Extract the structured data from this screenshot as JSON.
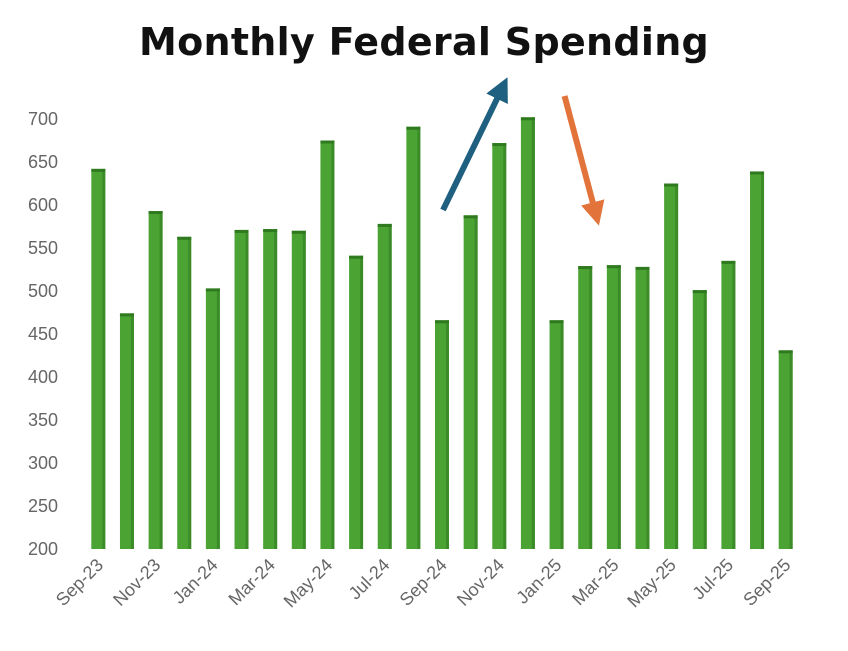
{
  "colors": {
    "bar": "#4aa333",
    "bar_top": "#2f7a1f",
    "arrow_up": "#1f5f7f",
    "arrow_down": "#e2733a",
    "axis_text": "#666666"
  },
  "chart_data": {
    "type": "bar",
    "title": "Monthly Federal Spending",
    "xlabel": "",
    "ylabel": "",
    "ylim": [
      200,
      700
    ],
    "yticks": [
      200,
      250,
      300,
      350,
      400,
      450,
      500,
      550,
      600,
      650,
      700
    ],
    "categories": [
      "Sep-23",
      "Oct-23",
      "Nov-23",
      "Dec-23",
      "Jan-24",
      "Feb-24",
      "Mar-24",
      "Apr-24",
      "May-24",
      "Jun-24",
      "Jul-24",
      "Aug-24",
      "Sep-24",
      "Oct-24",
      "Nov-24",
      "Dec-24",
      "Jan-25",
      "Feb-25",
      "Mar-25",
      "Apr-25",
      "May-25",
      "Jun-25",
      "Jul-25",
      "Aug-25",
      "Sep-25"
    ],
    "x_tick_labels": [
      "Sep-23",
      "Nov-23",
      "Jan-24",
      "Mar-24",
      "May-24",
      "Jul-24",
      "Sep-24",
      "Nov-24",
      "Jan-25",
      "Mar-25",
      "May-25",
      "Jul-25",
      "Sep-25"
    ],
    "values": [
      642,
      474,
      593,
      563,
      503,
      571,
      572,
      570,
      675,
      541,
      578,
      691,
      466,
      588,
      672,
      702,
      466,
      529,
      530,
      528,
      625,
      501,
      535,
      639,
      431
    ],
    "annotations": [
      {
        "type": "arrow",
        "direction": "up",
        "from_category": "Sep-24",
        "to_category": "Nov-24",
        "color": "arrow_up"
      },
      {
        "type": "arrow",
        "direction": "down",
        "from_category": "Jan-25",
        "to_category": "Mar-25",
        "color": "arrow_down"
      }
    ],
    "grid": false,
    "legend": "none"
  }
}
